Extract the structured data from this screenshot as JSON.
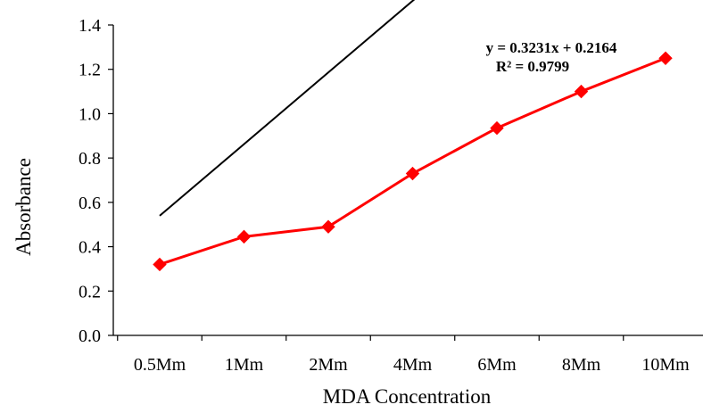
{
  "chart_data": {
    "type": "line",
    "title": "",
    "xlabel": "MDA Concentration",
    "ylabel": "Absorbance",
    "categories": [
      "0.5Mm",
      "1Mm",
      "2Mm",
      "4Mm",
      "6Mm",
      "8Mm",
      "10Mm"
    ],
    "series": [
      {
        "values": [
          0.32,
          0.445,
          0.49,
          0.73,
          0.935,
          1.1,
          1.25
        ],
        "color": "#ff0000",
        "marker": "diamond"
      }
    ],
    "trendline": {
      "type": "linear",
      "slope": 0.3231,
      "intercept": 0.2164,
      "color": "#000000",
      "equation_label": "y = 0.3231x + 0.2164",
      "r2_label": "R² = 0.9799"
    },
    "ylim": [
      0,
      1.4
    ],
    "y_ticks": [
      "0.0",
      "0.2",
      "0.4",
      "0.6",
      "0.8",
      "1.0",
      "1.2",
      "1.4"
    ],
    "y_tick_values": [
      0,
      0.2,
      0.4,
      0.6,
      0.8,
      1.0,
      1.2,
      1.4
    ],
    "grid": false,
    "legend": "none"
  }
}
